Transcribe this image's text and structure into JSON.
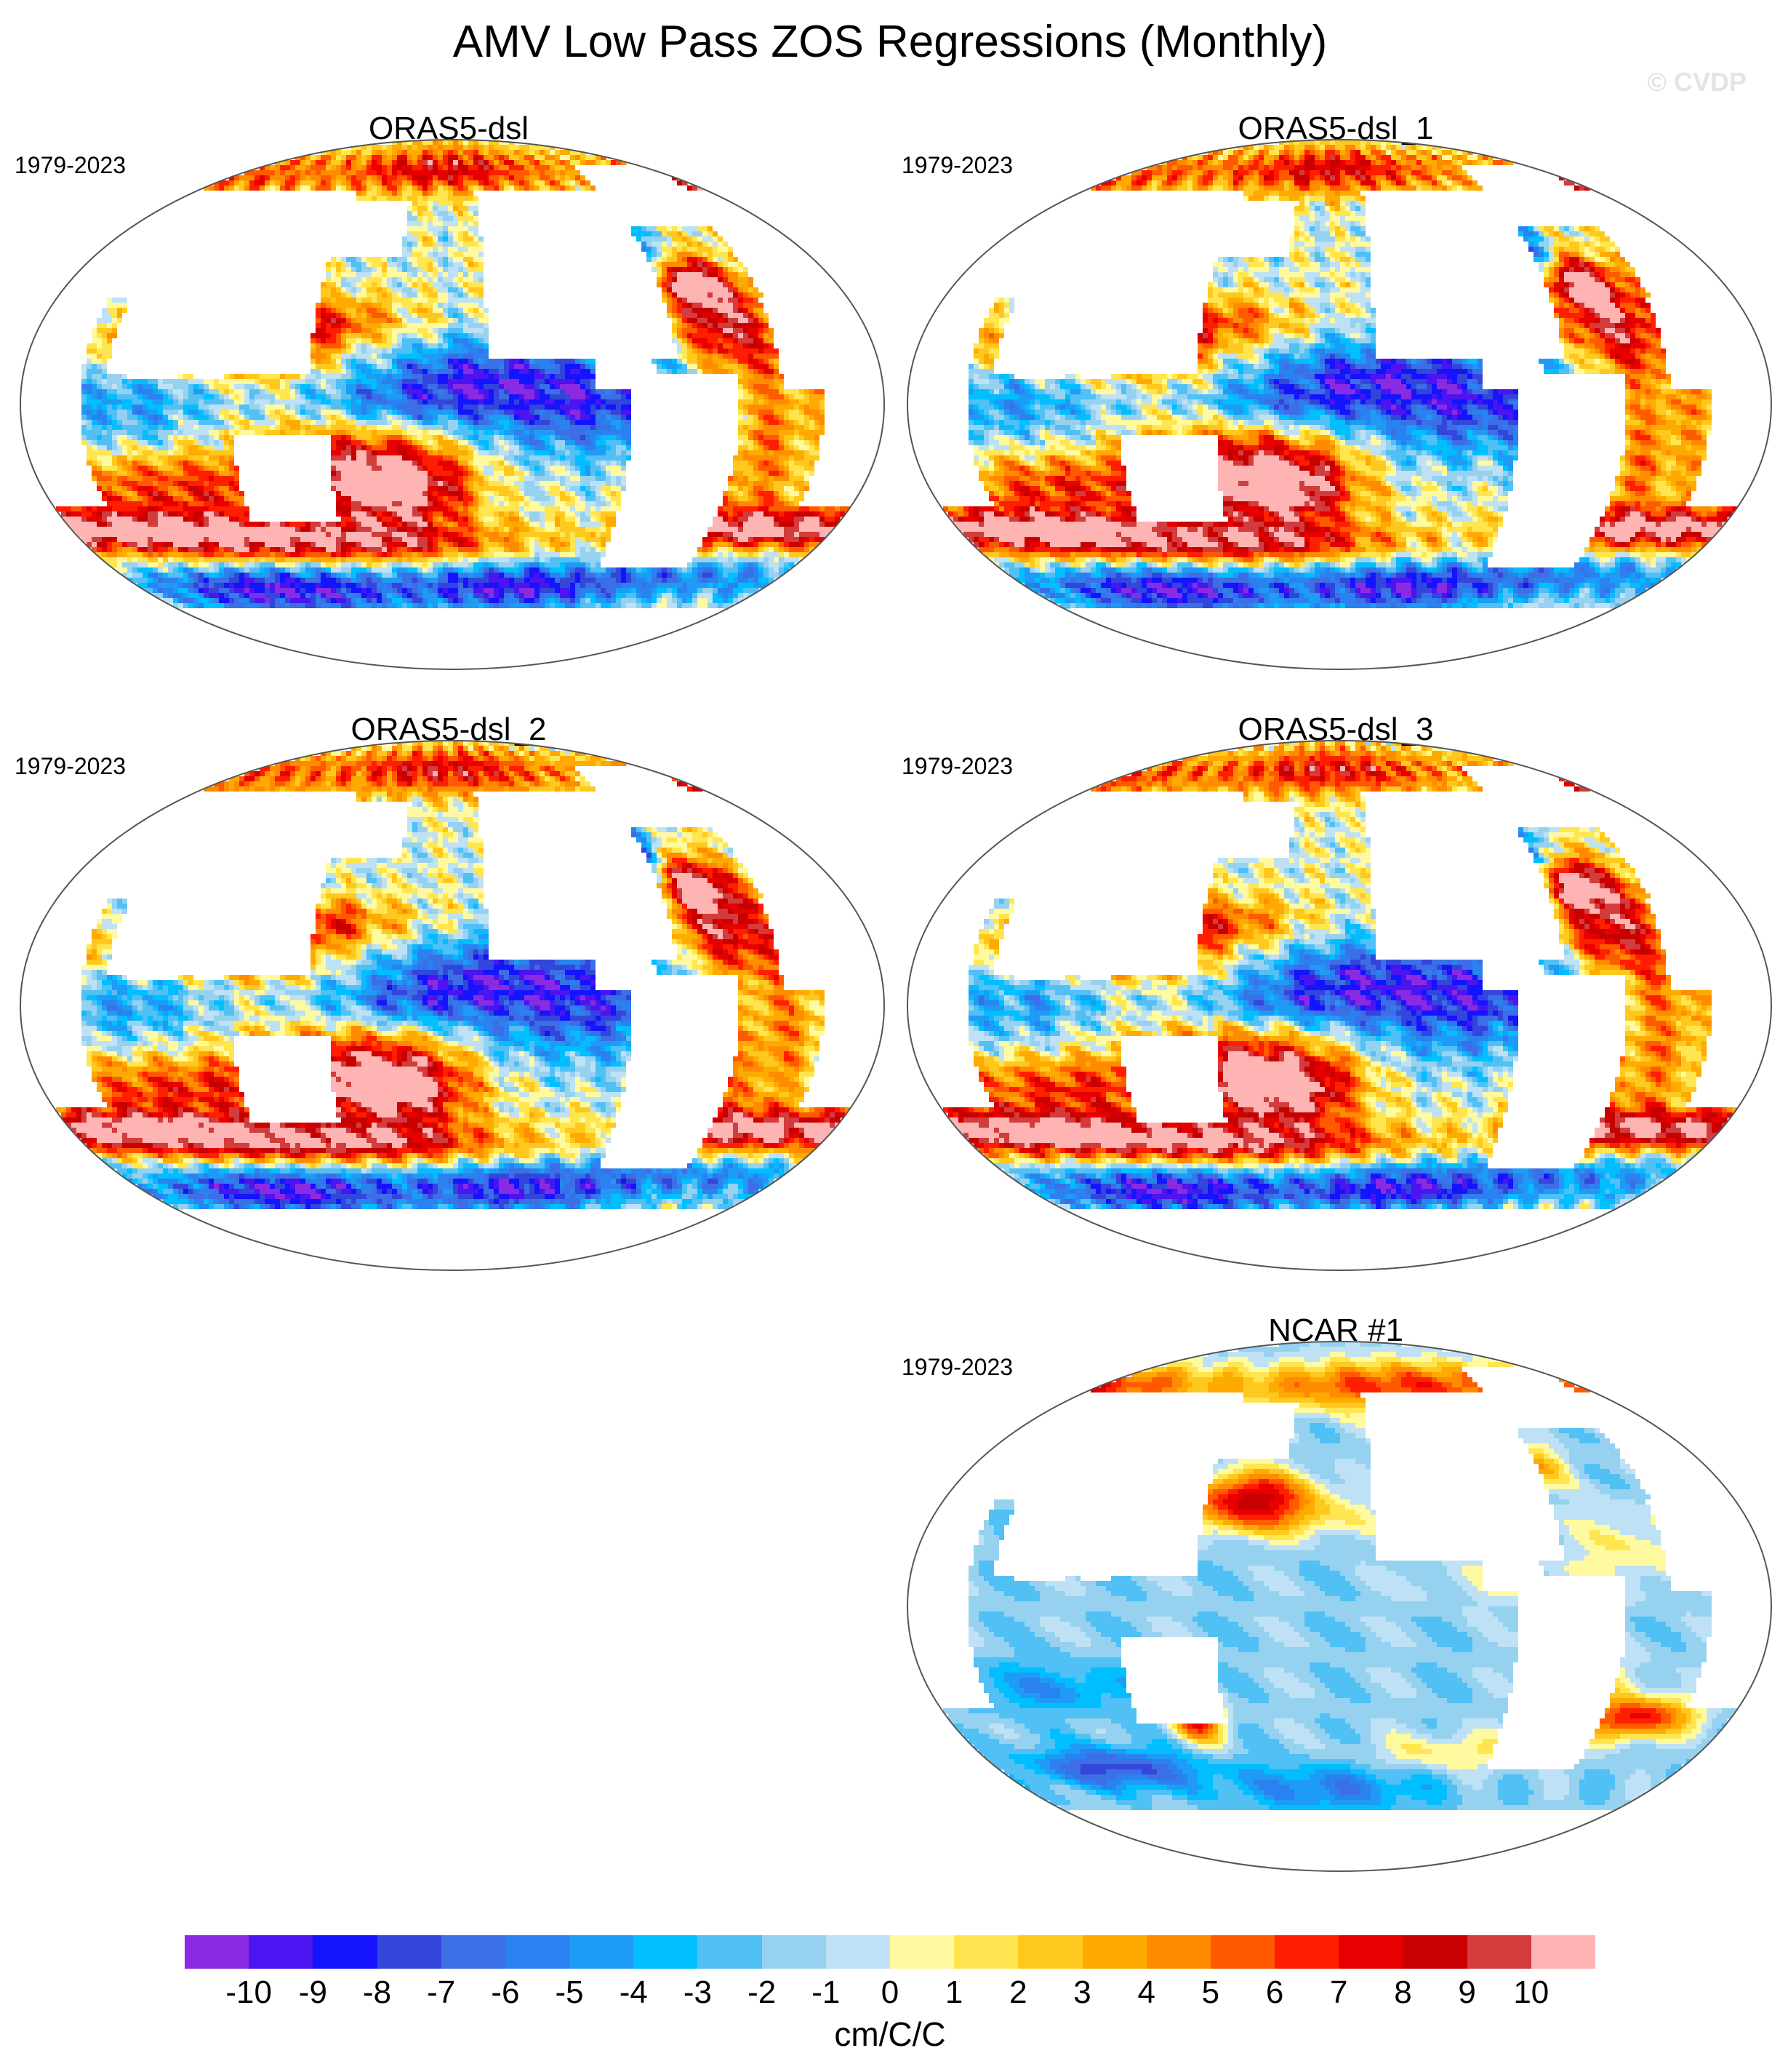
{
  "figure": {
    "title": "AMV Low Pass ZOS Regressions (Monthly)",
    "watermark": "© CVDP"
  },
  "panels": [
    {
      "title": "ORAS5-dsl",
      "years": "1979-2023",
      "pattern": "oras",
      "variant": 0
    },
    {
      "title": "ORAS5-dsl_1",
      "years": "1979-2023",
      "pattern": "oras",
      "variant": 1
    },
    {
      "title": "ORAS5-dsl_2",
      "years": "1979-2023",
      "pattern": "oras",
      "variant": 2
    },
    {
      "title": "ORAS5-dsl_3",
      "years": "1979-2023",
      "pattern": "oras",
      "variant": 3
    },
    {
      "title": "NCAR #1",
      "years": "1979-2023",
      "pattern": "ncar",
      "variant": 0
    }
  ],
  "colorbar": {
    "units": "cm/C/C",
    "labels": [
      "-10",
      "-9",
      "-8",
      "-7",
      "-6",
      "-5",
      "-4",
      "-3",
      "-2",
      "-1",
      "0",
      "1",
      "2",
      "3",
      "4",
      "5",
      "6",
      "7",
      "8",
      "9",
      "10"
    ],
    "colors": [
      "#8a2be2",
      "#4b14f0",
      "#1414ff",
      "#3246dc",
      "#3c6ee6",
      "#2a82f0",
      "#1e9bf5",
      "#00beff",
      "#50c0f5",
      "#96d2f0",
      "#bee1f5",
      "#fffaa0",
      "#ffe650",
      "#ffc81e",
      "#ffaa00",
      "#ff8c00",
      "#ff5a00",
      "#ff1e00",
      "#e60000",
      "#c80000",
      "#d23c3c",
      "#ffb4b4"
    ],
    "land_color": "#ffffff"
  }
}
